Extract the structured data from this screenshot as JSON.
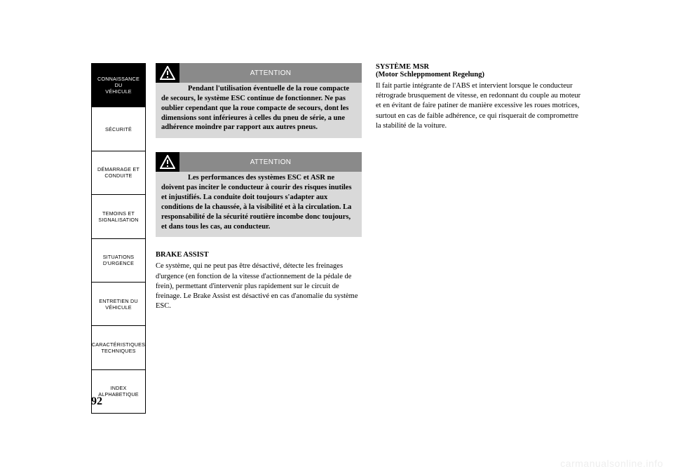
{
  "nav": [
    {
      "label": "CONNAISSANCE DU\nVÉHICULE",
      "selected": true
    },
    {
      "label": "SÉCURITÉ",
      "selected": false
    },
    {
      "label": "DÉMARRAGE ET\nCONDUITE",
      "selected": false
    },
    {
      "label": "TEMOINS ET\nSIGNALISATION",
      "selected": false
    },
    {
      "label": "SITUATIONS\nD'URGENCE",
      "selected": false
    },
    {
      "label": "ENTRETIEN DU\nVÉHICULE",
      "selected": false
    },
    {
      "label": "CARACTÉRISTIQUES\nTECHNIQUES",
      "selected": false
    },
    {
      "label": "INDEX\nALPHABETIQUE",
      "selected": false
    }
  ],
  "col1": {
    "warn1": {
      "title": "ATTENTION",
      "body": "Pendant l'utilisation éventuelle de la roue compacte de secours, le système ESC continue de fonctionner. Ne pas oublier cependant que la roue compacte de secours, dont les dimensions sont inférieures à celles du pneu de série, a une adhérence moindre par rapport aux autres pneus."
    },
    "warn2": {
      "title": "ATTENTION",
      "body": "Les performances des systèmes ESC et ASR ne doivent pas inciter le conducteur à courir des risques inutiles et injustifiés. La conduite doit toujours s'adapter aux conditions de la chaussée, à la visibilité et à la circulation. La responsabilité de la sécurité routière incombe donc toujours, et dans tous les cas, au conducteur."
    },
    "brake": {
      "head": "BRAKE ASSIST",
      "body": "Ce système, qui ne peut pas être désactivé, détecte les freinages d'urgence (en fonction de la vitesse d'actionnement de la pédale de frein), permettant d'intervenir plus rapidement sur le circuit de freinage. Le Brake Assist est désactivé en cas d'anomalie du système ESC."
    }
  },
  "col2": {
    "msr": {
      "head1": "SYSTÈME MSR",
      "head2": "(Motor Schleppmoment Regelung)",
      "body": "Il fait partie intégrante de l'ABS et intervient lorsque le conducteur rétrograde brusquement de vitesse, en redonnant du couple au moteur et en évitant de faire patiner de manière excessive les roues motrices, surtout en cas de faible adhérence, ce qui risquerait de compromettre la stabilité de la voiture."
    }
  },
  "pageNumber": "92",
  "watermark": "carmanualsonline.info",
  "style": {
    "warning_bg": "#d9d9d9",
    "warning_titlebar": "#8a8a8a",
    "icon_bg": "#000000",
    "page_bg": "#ffffff"
  }
}
